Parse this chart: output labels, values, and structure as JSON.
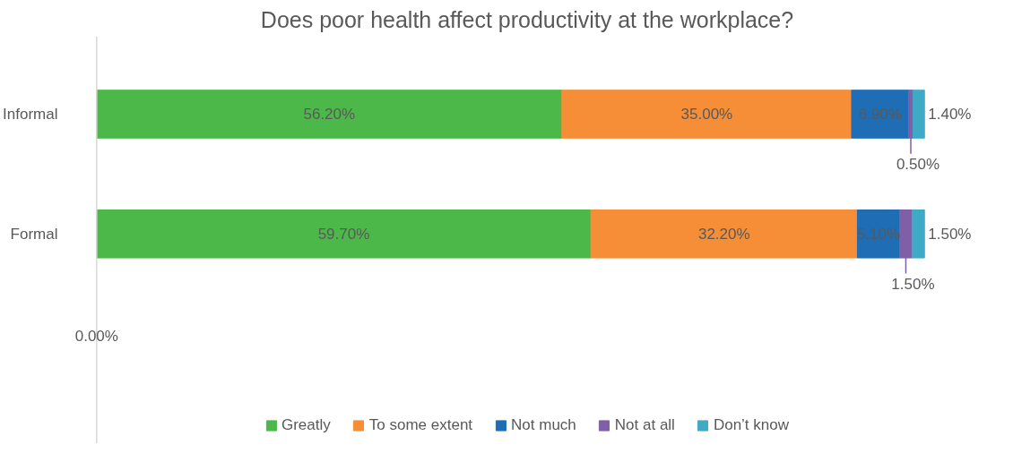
{
  "chart_data": {
    "type": "bar",
    "orientation": "horizontal",
    "stacked": true,
    "title": "Does poor health affect productivity at the workplace?",
    "categories": [
      "Informal",
      "Formal"
    ],
    "series": [
      {
        "name": "Greatly",
        "color": "#4cb849",
        "values": [
          56.2,
          59.7
        ],
        "value_labels": [
          "56.20%",
          "59.70%"
        ]
      },
      {
        "name": "To some extent",
        "color": "#f58e36",
        "values": [
          35.0,
          32.2
        ],
        "value_labels": [
          "35.00%",
          "32.20%"
        ]
      },
      {
        "name": "Not much",
        "color": "#1f6db5",
        "values": [
          6.9,
          5.1
        ],
        "value_labels": [
          "6.90%",
          "5.10%"
        ]
      },
      {
        "name": "Not at all",
        "color": "#7f5fa8",
        "values": [
          0.5,
          1.5
        ],
        "value_labels": [
          "0.50%",
          "1.50%"
        ]
      },
      {
        "name": "Don’t know",
        "color": "#3faac6",
        "values": [
          1.4,
          1.5
        ],
        "value_labels": [
          "1.40%",
          "1.50%"
        ]
      }
    ],
    "annotations": [
      "0.00%"
    ],
    "legend": "bottom"
  }
}
